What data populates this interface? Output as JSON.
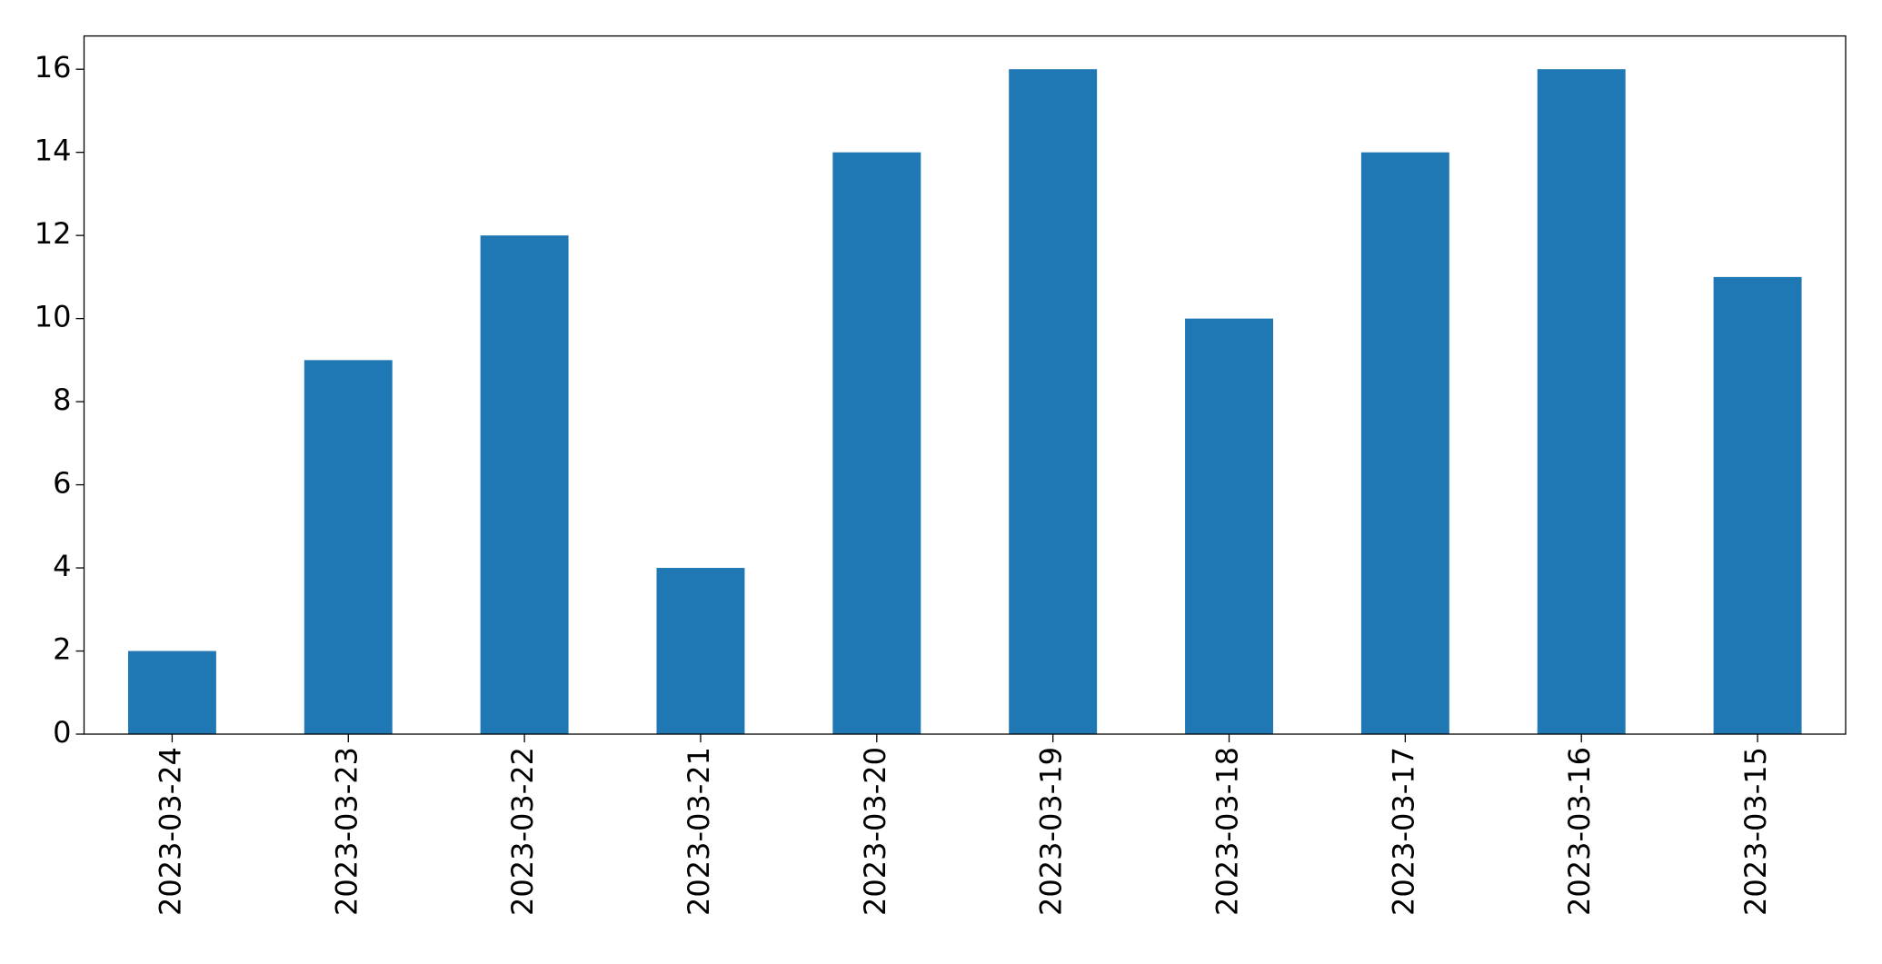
{
  "chart_data": {
    "type": "bar",
    "categories": [
      "2023-03-24",
      "2023-03-23",
      "2023-03-22",
      "2023-03-21",
      "2023-03-20",
      "2023-03-19",
      "2023-03-18",
      "2023-03-17",
      "2023-03-16",
      "2023-03-15"
    ],
    "values": [
      2,
      9,
      12,
      4,
      14,
      16,
      10,
      14,
      16,
      11
    ],
    "color": "#1f77b4",
    "ylim": [
      0,
      16.8
    ],
    "yticks": [
      0,
      2,
      4,
      6,
      8,
      10,
      12,
      14,
      16
    ],
    "grid": false
  }
}
